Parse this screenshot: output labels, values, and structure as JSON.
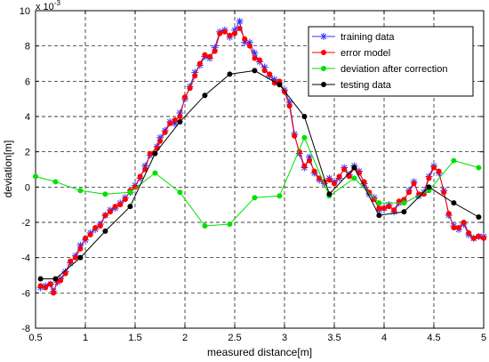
{
  "chart_data": {
    "type": "line",
    "xlabel": "measured distance[m]",
    "ylabel": "deviation[m]",
    "scale_label": "x 10",
    "scale_exponent": "-3",
    "xlim": [
      0.5,
      5
    ],
    "ylim": [
      -8,
      10
    ],
    "xticks": [
      "0.5",
      "1",
      "1.5",
      "2",
      "2.5",
      "3",
      "3.5",
      "4",
      "4.5",
      "5"
    ],
    "yticks": [
      "-8",
      "-6",
      "-4",
      "-2",
      "0",
      "2",
      "4",
      "6",
      "8",
      "10"
    ],
    "grid": true,
    "legend_position": "top-right",
    "series": [
      {
        "name": "training data",
        "color": "#3030ff",
        "marker": "star",
        "x": [
          0.55,
          0.6,
          0.65,
          0.68,
          0.72,
          0.75,
          0.8,
          0.85,
          0.9,
          0.95,
          1.0,
          1.05,
          1.1,
          1.15,
          1.2,
          1.25,
          1.3,
          1.35,
          1.4,
          1.45,
          1.5,
          1.55,
          1.6,
          1.65,
          1.72,
          1.75,
          1.8,
          1.85,
          1.9,
          1.95,
          2.0,
          2.05,
          2.1,
          2.15,
          2.2,
          2.25,
          2.3,
          2.35,
          2.4,
          2.45,
          2.5,
          2.55,
          2.6,
          2.65,
          2.7,
          2.75,
          2.8,
          2.85,
          2.9,
          2.95,
          3.0,
          3.05,
          3.1,
          3.15,
          3.2,
          3.25,
          3.3,
          3.35,
          3.4,
          3.45,
          3.5,
          3.55,
          3.6,
          3.65,
          3.7,
          3.75,
          3.8,
          3.85,
          3.9,
          3.95,
          4.0,
          4.05,
          4.1,
          4.15,
          4.2,
          4.25,
          4.3,
          4.35,
          4.4,
          4.45,
          4.5,
          4.55,
          4.6,
          4.65,
          4.7,
          4.75,
          4.8,
          4.85,
          4.9,
          4.95,
          5.0
        ],
        "values": [
          -5.7,
          -5.6,
          -5.5,
          -5.9,
          -5.4,
          -5.2,
          -4.8,
          -4.3,
          -3.9,
          -3.3,
          -3.0,
          -2.6,
          -2.4,
          -2.1,
          -1.6,
          -1.3,
          -1.2,
          -0.9,
          -0.6,
          -0.3,
          0.1,
          0.5,
          1.2,
          1.8,
          2.3,
          2.8,
          3.2,
          3.7,
          3.6,
          4.2,
          5.0,
          5.7,
          6.5,
          6.9,
          7.4,
          7.3,
          7.9,
          8.8,
          8.9,
          8.5,
          8.9,
          9.4,
          8.2,
          8.2,
          7.6,
          7.1,
          6.8,
          6.3,
          6.1,
          5.9,
          5.5,
          4.8,
          3.0,
          1.9,
          1.1,
          1.7,
          0.8,
          0.4,
          0.2,
          0.5,
          0.3,
          0.5,
          1.1,
          0.7,
          1.2,
          0.9,
          0.2,
          -0.4,
          -0.6,
          -1.3,
          -1.2,
          -1.0,
          -1.4,
          -0.9,
          -0.8,
          -0.2,
          0.3,
          -0.5,
          -0.3,
          0.6,
          1.2,
          0.8,
          -0.2,
          -1.6,
          -2.2,
          -2.4,
          -2.1,
          -2.7,
          -2.9,
          -2.8,
          -2.8
        ]
      },
      {
        "name": "error model",
        "color": "#ff0000",
        "marker": "dot",
        "x": [
          0.55,
          0.6,
          0.65,
          0.68,
          0.72,
          0.75,
          0.8,
          0.85,
          0.9,
          0.95,
          1.0,
          1.05,
          1.1,
          1.15,
          1.2,
          1.25,
          1.3,
          1.35,
          1.4,
          1.45,
          1.5,
          1.55,
          1.6,
          1.65,
          1.72,
          1.75,
          1.8,
          1.85,
          1.9,
          1.95,
          2.0,
          2.05,
          2.1,
          2.15,
          2.2,
          2.25,
          2.3,
          2.35,
          2.4,
          2.45,
          2.5,
          2.55,
          2.6,
          2.65,
          2.7,
          2.75,
          2.8,
          2.85,
          2.9,
          2.95,
          3.0,
          3.05,
          3.1,
          3.15,
          3.2,
          3.25,
          3.3,
          3.35,
          3.4,
          3.45,
          3.5,
          3.55,
          3.6,
          3.65,
          3.7,
          3.75,
          3.8,
          3.85,
          3.9,
          3.95,
          4.0,
          4.05,
          4.1,
          4.15,
          4.2,
          4.25,
          4.3,
          4.35,
          4.4,
          4.45,
          4.5,
          4.55,
          4.6,
          4.65,
          4.7,
          4.75,
          4.8,
          4.85,
          4.9,
          4.95,
          5.0
        ],
        "values": [
          -5.6,
          -5.7,
          -5.5,
          -6.0,
          -5.3,
          -5.3,
          -4.9,
          -4.2,
          -4.0,
          -3.5,
          -2.9,
          -2.7,
          -2.3,
          -2.2,
          -1.6,
          -1.4,
          -1.1,
          -1.0,
          -0.7,
          -0.2,
          0.0,
          0.6,
          1.0,
          1.9,
          2.2,
          2.6,
          3.1,
          3.6,
          3.8,
          4.0,
          5.1,
          5.6,
          6.3,
          7.0,
          7.5,
          7.4,
          7.7,
          8.7,
          8.8,
          8.6,
          8.7,
          9.0,
          8.4,
          8.0,
          7.3,
          7.2,
          6.6,
          6.4,
          5.9,
          6.0,
          5.4,
          4.6,
          2.9,
          2.0,
          1.2,
          1.5,
          0.9,
          0.5,
          0.3,
          0.4,
          0.2,
          0.6,
          1.0,
          0.6,
          1.1,
          0.8,
          0.3,
          -0.3,
          -0.7,
          -1.2,
          -1.2,
          -1.1,
          -1.3,
          -0.8,
          -0.7,
          -0.3,
          0.2,
          -0.4,
          -0.4,
          0.5,
          1.1,
          0.9,
          -0.3,
          -1.5,
          -2.3,
          -2.3,
          -2.0,
          -2.6,
          -2.9,
          -2.8,
          -2.9
        ]
      },
      {
        "name": "deviation after correction",
        "color": "#00e000",
        "marker": "dot",
        "x": [
          0.5,
          0.7,
          0.95,
          1.2,
          1.45,
          1.7,
          1.95,
          2.2,
          2.45,
          2.7,
          2.95,
          3.2,
          3.45,
          3.7,
          3.95,
          4.2,
          4.45,
          4.7,
          4.95
        ],
        "values": [
          0.6,
          0.3,
          -0.2,
          -0.4,
          -0.3,
          0.8,
          -0.3,
          -2.2,
          -2.1,
          -0.6,
          -0.5,
          2.8,
          -0.5,
          0.5,
          -0.9,
          -0.9,
          -0.2,
          1.5,
          1.1
        ]
      },
      {
        "name": "testing data",
        "color": "#000000",
        "marker": "dot",
        "x": [
          0.55,
          0.7,
          0.95,
          1.2,
          1.45,
          1.7,
          1.95,
          2.2,
          2.45,
          2.7,
          2.95,
          3.2,
          3.45,
          3.7,
          3.95,
          4.2,
          4.45,
          4.7,
          4.95
        ],
        "values": [
          -5.2,
          -5.2,
          -4.0,
          -2.5,
          -1.1,
          1.9,
          3.7,
          5.2,
          6.4,
          6.6,
          5.8,
          4.0,
          -0.4,
          1.1,
          -1.6,
          -1.4,
          0.0,
          -0.9,
          -1.7
        ]
      }
    ]
  }
}
